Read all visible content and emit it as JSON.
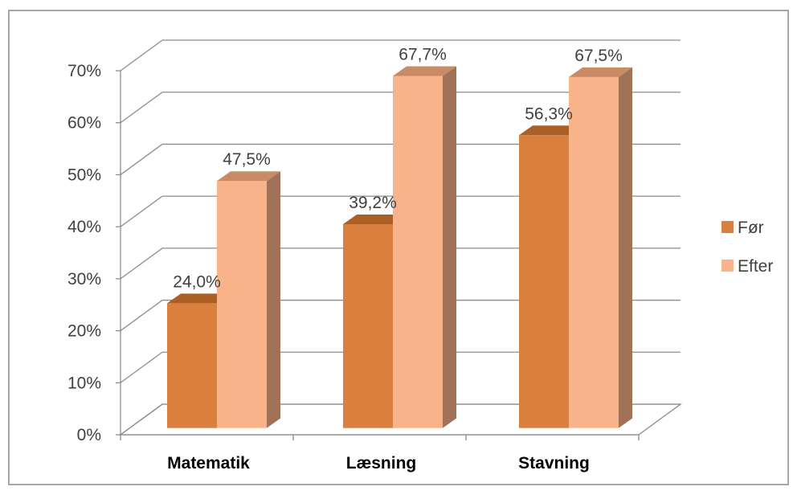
{
  "chart_data": {
    "type": "bar",
    "categories": [
      "Matematik",
      "Læsning",
      "Stavning"
    ],
    "series": [
      {
        "name": "Før",
        "values": [
          24.0,
          39.2,
          56.3
        ],
        "labels": [
          "24,0%",
          "39,2%",
          "56,3%"
        ],
        "color": "#d9803f"
      },
      {
        "name": "Efter",
        "values": [
          47.5,
          67.7,
          67.5
        ],
        "labels": [
          "47,5%",
          "67,7%",
          "67,5%"
        ],
        "color": "#f9b38b"
      }
    ],
    "y_ticks": [
      "0%",
      "10%",
      "20%",
      "30%",
      "40%",
      "50%",
      "60%",
      "70%"
    ],
    "ylim": [
      0,
      70
    ],
    "grid": true,
    "three_d": true,
    "legend_position": "right"
  }
}
